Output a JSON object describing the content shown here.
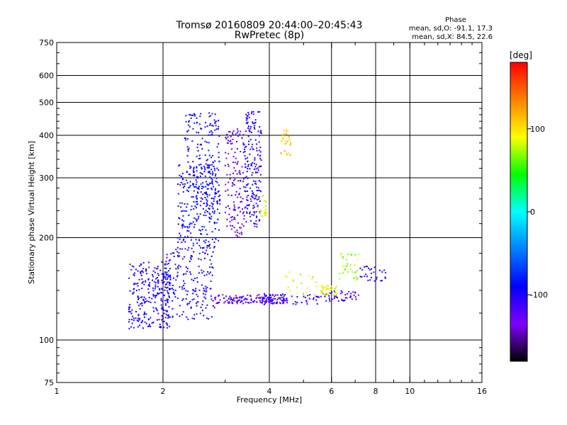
{
  "chart_data": {
    "type": "scatter",
    "title_line1": "Tromsø 20160809 20:44:00–20:45:43",
    "title_line2": "RwPretec (8p)",
    "xlabel": "Frequency [MHz]",
    "ylabel": "Stationary phase Virtual Height [km]",
    "x_scale": "log",
    "y_scale": "log",
    "xlim": [
      1,
      16
    ],
    "ylim": [
      75,
      750
    ],
    "x_ticks": [
      1,
      2,
      4,
      6,
      8,
      10,
      16
    ],
    "y_ticks": [
      75,
      100,
      200,
      300,
      400,
      500,
      600,
      750
    ],
    "x_gridlines": [
      2,
      4,
      6,
      8,
      10
    ],
    "y_gridlines": [
      100,
      200,
      300,
      400,
      500,
      600
    ],
    "grid": true,
    "phase_header": "Phase",
    "phase_stats_o": "mean, sd,O: -91.1, 17.3",
    "phase_stats_x": "mean, sd,X:  84.5, 22.6",
    "colorbar": {
      "label": "[deg]",
      "range": [
        -180,
        180
      ],
      "ticks": [
        100,
        0,
        -100
      ],
      "colors": [
        "#ff0000",
        "#ff8000",
        "#ffff00",
        "#00ff00",
        "#00ffff",
        "#0080ff",
        "#0000ff",
        "#8000ff",
        "#000000"
      ]
    },
    "series": [
      {
        "clusters": [
          {
            "x": [
              1.6,
              2.1
            ],
            "y": [
              108,
              170
            ],
            "phase": -100,
            "n": 260
          },
          {
            "x": [
              2.0,
              2.8
            ],
            "y": [
              115,
              185
            ],
            "phase": -95,
            "n": 200
          },
          {
            "x": [
              2.2,
              2.9
            ],
            "y": [
              185,
              330
            ],
            "phase": -90,
            "n": 260
          },
          {
            "x": [
              2.3,
              2.9
            ],
            "y": [
              240,
              470
            ],
            "phase": -95,
            "n": 170
          },
          {
            "x": [
              3.0,
              3.4
            ],
            "y": [
              200,
              420
            ],
            "phase": -130,
            "n": 140
          },
          {
            "x": [
              3.4,
              3.8
            ],
            "y": [
              215,
              470
            ],
            "phase": -105,
            "n": 190
          },
          {
            "x": [
              2.8,
              4.5
            ],
            "y": [
              128,
              136
            ],
            "phase": -125,
            "n": 150
          },
          {
            "x": [
              3.8,
              5.8
            ],
            "y": [
              127,
              137
            ],
            "phase": -100,
            "n": 60
          },
          {
            "x": [
              5.9,
              7.2
            ],
            "y": [
              130,
              140
            ],
            "phase": -110,
            "n": 40
          },
          {
            "x": [
              7.2,
              8.6
            ],
            "y": [
              148,
              165
            ],
            "phase": -105,
            "n": 30
          }
        ]
      },
      {
        "clusters": [
          {
            "x": [
              4.3,
              4.6
            ],
            "y": [
              350,
              420
            ],
            "phase": 110,
            "n": 30
          },
          {
            "x": [
              3.7,
              3.95
            ],
            "y": [
              230,
              270
            ],
            "phase": 90,
            "n": 25
          },
          {
            "x": [
              5.6,
              6.2
            ],
            "y": [
              135,
              145
            ],
            "phase": 90,
            "n": 40
          },
          {
            "x": [
              6.3,
              7.2
            ],
            "y": [
              150,
              180
            ],
            "phase": 70,
            "n": 35
          },
          {
            "x": [
              4.4,
              5.5
            ],
            "y": [
              135,
              160
            ],
            "phase": 85,
            "n": 20
          }
        ]
      }
    ]
  }
}
